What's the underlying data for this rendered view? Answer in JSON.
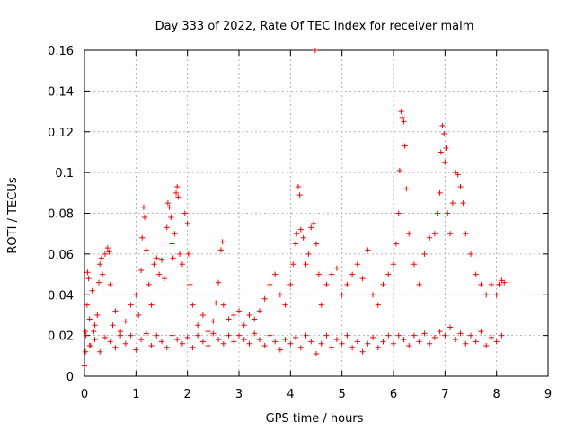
{
  "chart_data": {
    "type": "scatter",
    "title": "Day 333 of 2022, Rate Of TEC Index for receiver malm",
    "xlabel": "GPS time / hours",
    "ylabel": "ROTI / TECUs",
    "xlim": [
      0,
      9
    ],
    "ylim": [
      0,
      0.16
    ],
    "x_ticks": [
      0,
      1,
      2,
      3,
      4,
      5,
      6,
      7,
      8,
      9
    ],
    "x_tick_labels": [
      "0",
      "1",
      "2",
      "3",
      "4",
      "5",
      "6",
      "7",
      "8",
      "9"
    ],
    "y_ticks": [
      0,
      0.02,
      0.04,
      0.06,
      0.08,
      0.1,
      0.12,
      0.14,
      0.16
    ],
    "y_tick_labels": [
      "0",
      "0.02",
      "0.04",
      "0.06",
      "0.08",
      "0.1",
      "0.12",
      "0.14",
      "0.16"
    ],
    "grid": true,
    "marker": "+",
    "series": [
      {
        "color": "#ff0000",
        "points": [
          [
            0.0,
            0.005
          ],
          [
            0.02,
            0.012
          ],
          [
            0.03,
            0.02
          ],
          [
            0.05,
            0.035
          ],
          [
            0.06,
            0.051
          ],
          [
            0.08,
            0.048
          ],
          [
            0.1,
            0.028
          ],
          [
            0.12,
            0.015
          ],
          [
            0.15,
            0.042
          ],
          [
            0.18,
            0.022
          ],
          [
            0.2,
            0.018
          ],
          [
            0.25,
            0.03
          ],
          [
            0.28,
            0.046
          ],
          [
            0.3,
            0.055
          ],
          [
            0.33,
            0.058
          ],
          [
            0.35,
            0.05
          ],
          [
            0.4,
            0.06
          ],
          [
            0.45,
            0.063
          ],
          [
            0.48,
            0.061
          ],
          [
            0.5,
            0.045
          ],
          [
            0.55,
            0.025
          ],
          [
            0.6,
            0.032
          ],
          [
            0.7,
            0.02
          ],
          [
            0.8,
            0.027
          ],
          [
            0.9,
            0.035
          ],
          [
            1.0,
            0.04
          ],
          [
            1.05,
            0.03
          ],
          [
            1.1,
            0.052
          ],
          [
            1.12,
            0.068
          ],
          [
            1.15,
            0.083
          ],
          [
            1.17,
            0.078
          ],
          [
            1.2,
            0.062
          ],
          [
            1.25,
            0.045
          ],
          [
            1.3,
            0.035
          ],
          [
            1.35,
            0.055
          ],
          [
            1.4,
            0.058
          ],
          [
            1.45,
            0.05
          ],
          [
            1.5,
            0.057
          ],
          [
            1.55,
            0.048
          ],
          [
            1.6,
            0.073
          ],
          [
            1.62,
            0.085
          ],
          [
            1.65,
            0.083
          ],
          [
            1.68,
            0.078
          ],
          [
            1.7,
            0.065
          ],
          [
            1.72,
            0.058
          ],
          [
            1.75,
            0.07
          ],
          [
            1.78,
            0.09
          ],
          [
            1.8,
            0.093
          ],
          [
            1.82,
            0.088
          ],
          [
            1.85,
            0.06
          ],
          [
            1.9,
            0.055
          ],
          [
            1.95,
            0.08
          ],
          [
            2.0,
            0.075
          ],
          [
            2.02,
            0.06
          ],
          [
            2.05,
            0.045
          ],
          [
            2.1,
            0.035
          ],
          [
            2.2,
            0.025
          ],
          [
            2.3,
            0.03
          ],
          [
            2.4,
            0.022
          ],
          [
            2.5,
            0.027
          ],
          [
            2.55,
            0.036
          ],
          [
            2.6,
            0.046
          ],
          [
            2.65,
            0.062
          ],
          [
            2.68,
            0.066
          ],
          [
            2.7,
            0.035
          ],
          [
            2.8,
            0.028
          ],
          [
            2.9,
            0.03
          ],
          [
            3.0,
            0.032
          ],
          [
            3.1,
            0.025
          ],
          [
            3.2,
            0.03
          ],
          [
            3.3,
            0.028
          ],
          [
            3.4,
            0.032
          ],
          [
            3.5,
            0.038
          ],
          [
            3.6,
            0.045
          ],
          [
            3.7,
            0.05
          ],
          [
            3.8,
            0.04
          ],
          [
            3.9,
            0.035
          ],
          [
            4.0,
            0.045
          ],
          [
            4.05,
            0.055
          ],
          [
            4.1,
            0.065
          ],
          [
            4.12,
            0.07
          ],
          [
            4.15,
            0.093
          ],
          [
            4.18,
            0.089
          ],
          [
            4.2,
            0.072
          ],
          [
            4.25,
            0.068
          ],
          [
            4.3,
            0.055
          ],
          [
            4.35,
            0.06
          ],
          [
            4.4,
            0.073
          ],
          [
            4.45,
            0.075
          ],
          [
            4.48,
            0.16
          ],
          [
            4.5,
            0.065
          ],
          [
            4.55,
            0.05
          ],
          [
            4.6,
            0.035
          ],
          [
            4.7,
            0.045
          ],
          [
            4.8,
            0.05
          ],
          [
            4.9,
            0.053
          ],
          [
            5.0,
            0.04
          ],
          [
            5.1,
            0.045
          ],
          [
            5.2,
            0.05
          ],
          [
            5.3,
            0.055
          ],
          [
            5.4,
            0.048
          ],
          [
            5.5,
            0.062
          ],
          [
            5.6,
            0.04
          ],
          [
            5.7,
            0.035
          ],
          [
            5.8,
            0.045
          ],
          [
            5.9,
            0.05
          ],
          [
            6.0,
            0.055
          ],
          [
            6.05,
            0.065
          ],
          [
            6.1,
            0.08
          ],
          [
            6.12,
            0.101
          ],
          [
            6.15,
            0.13
          ],
          [
            6.17,
            0.127
          ],
          [
            6.2,
            0.125
          ],
          [
            6.22,
            0.113
          ],
          [
            6.25,
            0.092
          ],
          [
            6.3,
            0.07
          ],
          [
            6.4,
            0.055
          ],
          [
            6.5,
            0.045
          ],
          [
            6.6,
            0.06
          ],
          [
            6.7,
            0.068
          ],
          [
            6.8,
            0.07
          ],
          [
            6.85,
            0.08
          ],
          [
            6.9,
            0.09
          ],
          [
            6.92,
            0.11
          ],
          [
            6.95,
            0.123
          ],
          [
            6.98,
            0.119
          ],
          [
            7.0,
            0.105
          ],
          [
            7.02,
            0.112
          ],
          [
            7.05,
            0.08
          ],
          [
            7.1,
            0.07
          ],
          [
            7.15,
            0.085
          ],
          [
            7.2,
            0.1
          ],
          [
            7.25,
            0.099
          ],
          [
            7.3,
            0.093
          ],
          [
            7.35,
            0.085
          ],
          [
            7.4,
            0.07
          ],
          [
            7.5,
            0.06
          ],
          [
            7.6,
            0.05
          ],
          [
            7.7,
            0.045
          ],
          [
            7.8,
            0.04
          ],
          [
            7.9,
            0.045
          ],
          [
            8.0,
            0.04
          ],
          [
            8.05,
            0.045
          ],
          [
            8.1,
            0.047
          ],
          [
            8.15,
            0.046
          ],
          [
            0.02,
            0.022
          ],
          [
            0.1,
            0.015
          ],
          [
            0.2,
            0.025
          ],
          [
            0.3,
            0.012
          ],
          [
            0.4,
            0.019
          ],
          [
            0.5,
            0.017
          ],
          [
            0.6,
            0.014
          ],
          [
            0.7,
            0.022
          ],
          [
            0.8,
            0.016
          ],
          [
            0.9,
            0.02
          ],
          [
            1.0,
            0.013
          ],
          [
            1.1,
            0.018
          ],
          [
            1.2,
            0.021
          ],
          [
            1.3,
            0.015
          ],
          [
            1.4,
            0.02
          ],
          [
            1.5,
            0.017
          ],
          [
            1.6,
            0.014
          ],
          [
            1.7,
            0.02
          ],
          [
            1.8,
            0.018
          ],
          [
            1.9,
            0.016
          ],
          [
            2.0,
            0.019
          ],
          [
            2.1,
            0.014
          ],
          [
            2.2,
            0.02
          ],
          [
            2.3,
            0.017
          ],
          [
            2.4,
            0.015
          ],
          [
            2.5,
            0.021
          ],
          [
            2.6,
            0.018
          ],
          [
            2.7,
            0.016
          ],
          [
            2.8,
            0.02
          ],
          [
            2.9,
            0.017
          ],
          [
            3.0,
            0.02
          ],
          [
            3.1,
            0.018
          ],
          [
            3.2,
            0.016
          ],
          [
            3.3,
            0.021
          ],
          [
            3.4,
            0.018
          ],
          [
            3.5,
            0.015
          ],
          [
            3.6,
            0.02
          ],
          [
            3.7,
            0.017
          ],
          [
            3.8,
            0.013
          ],
          [
            3.9,
            0.018
          ],
          [
            4.0,
            0.016
          ],
          [
            4.1,
            0.019
          ],
          [
            4.2,
            0.014
          ],
          [
            4.3,
            0.02
          ],
          [
            4.4,
            0.017
          ],
          [
            4.5,
            0.011
          ],
          [
            4.6,
            0.016
          ],
          [
            4.7,
            0.02
          ],
          [
            4.8,
            0.014
          ],
          [
            4.9,
            0.018
          ],
          [
            5.0,
            0.016
          ],
          [
            5.1,
            0.02
          ],
          [
            5.2,
            0.014
          ],
          [
            5.3,
            0.017
          ],
          [
            5.4,
            0.012
          ],
          [
            5.5,
            0.016
          ],
          [
            5.6,
            0.019
          ],
          [
            5.7,
            0.014
          ],
          [
            5.8,
            0.017
          ],
          [
            5.9,
            0.02
          ],
          [
            6.0,
            0.016
          ],
          [
            6.1,
            0.02
          ],
          [
            6.2,
            0.018
          ],
          [
            6.3,
            0.015
          ],
          [
            6.4,
            0.02
          ],
          [
            6.5,
            0.017
          ],
          [
            6.6,
            0.021
          ],
          [
            6.7,
            0.016
          ],
          [
            6.8,
            0.019
          ],
          [
            6.9,
            0.022
          ],
          [
            7.0,
            0.02
          ],
          [
            7.1,
            0.024
          ],
          [
            7.2,
            0.018
          ],
          [
            7.3,
            0.021
          ],
          [
            7.4,
            0.016
          ],
          [
            7.5,
            0.02
          ],
          [
            7.6,
            0.017
          ],
          [
            7.7,
            0.022
          ],
          [
            7.8,
            0.015
          ],
          [
            7.9,
            0.019
          ],
          [
            8.0,
            0.017
          ],
          [
            8.1,
            0.02
          ]
        ]
      }
    ]
  }
}
